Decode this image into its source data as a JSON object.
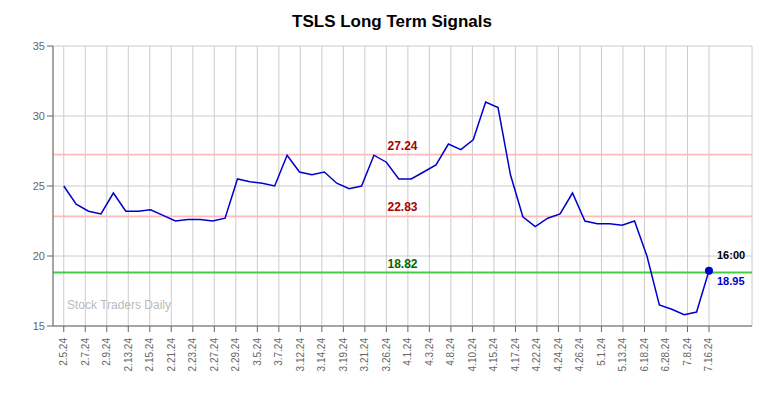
{
  "chart_data": {
    "type": "line",
    "title": "TSLS Long Term Signals",
    "x": [
      0,
      0.576923,
      1.153846,
      1.730769,
      2.307692,
      2.884615,
      3.461538,
      4.038462,
      4.615385,
      5.192308,
      5.769231,
      6.346154,
      6.923077,
      7.5,
      8.076923,
      8.653846,
      9.230769,
      9.807692,
      10.384615,
      10.961538,
      11.538462,
      12.115385,
      12.692308,
      13.269231,
      13.846154,
      14.423077,
      15,
      15.576923,
      16.153846,
      16.730769,
      17.307692,
      17.884615,
      18.461538,
      19.038462,
      19.615385,
      20.192308,
      20.769231,
      21.346154,
      21.923077,
      22.5,
      23.076923,
      23.653846,
      24.230769,
      24.807692,
      25.384615,
      25.961538,
      26.538462,
      27.115385,
      27.692308,
      28.269231,
      28.846154,
      29.423077,
      30
    ],
    "values": [
      25.0,
      23.7,
      23.2,
      23.0,
      24.5,
      23.2,
      23.2,
      23.3,
      22.9,
      22.5,
      22.6,
      22.6,
      22.5,
      22.7,
      25.5,
      25.3,
      25.2,
      25.0,
      27.2,
      26.0,
      25.8,
      26.0,
      25.2,
      24.8,
      25.0,
      27.2,
      26.7,
      25.5,
      25.5,
      26.0,
      26.5,
      28.0,
      27.6,
      28.3,
      31.0,
      30.6,
      25.8,
      22.8,
      22.1,
      22.7,
      23.0,
      24.5,
      22.5,
      22.3,
      22.3,
      22.2,
      22.5,
      20.0,
      16.5,
      16.2,
      15.8,
      16.0,
      18.95
    ],
    "color": "#0000cc",
    "xlim": [
      -0.5,
      32
    ],
    "xticks": [
      {
        "value": 0,
        "label": "2.5.24"
      },
      {
        "value": 1,
        "label": "2.7.24"
      },
      {
        "value": 2,
        "label": "2.9.24"
      },
      {
        "value": 3,
        "label": "2.13.24"
      },
      {
        "value": 4,
        "label": "2.15.24"
      },
      {
        "value": 5,
        "label": "2.21.24"
      },
      {
        "value": 6,
        "label": "2.23.24"
      },
      {
        "value": 7,
        "label": "2.27.24"
      },
      {
        "value": 8,
        "label": "2.29.24"
      },
      {
        "value": 9,
        "label": "3.5.24"
      },
      {
        "value": 10,
        "label": "3.7.24"
      },
      {
        "value": 11,
        "label": "3.12.24"
      },
      {
        "value": 12,
        "label": "3.14.24"
      },
      {
        "value": 13,
        "label": "3.19.24"
      },
      {
        "value": 14,
        "label": "3.21.24"
      },
      {
        "value": 15,
        "label": "3.26.24"
      },
      {
        "value": 16,
        "label": "4.1.24"
      },
      {
        "value": 17,
        "label": "4.3.24"
      },
      {
        "value": 18,
        "label": "4.8.24"
      },
      {
        "value": 19,
        "label": "4.10.24"
      },
      {
        "value": 20,
        "label": "4.15.24"
      },
      {
        "value": 21,
        "label": "4.17.24"
      },
      {
        "value": 22,
        "label": "4.22.24"
      },
      {
        "value": 23,
        "label": "4.24.24"
      },
      {
        "value": 24,
        "label": "4.26.24"
      },
      {
        "value": 25,
        "label": "5.1.24"
      },
      {
        "value": 26,
        "label": "5.13.24"
      },
      {
        "value": 27,
        "label": "6.18.24"
      },
      {
        "value": 28,
        "label": "6.28.24"
      },
      {
        "value": 29,
        "label": "7.8.24"
      },
      {
        "value": 30,
        "label": "7.16.24"
      }
    ],
    "ylim": [
      15,
      35
    ],
    "yticks": [
      15,
      20,
      25,
      30,
      35
    ],
    "grid": true,
    "reference_lines": [
      {
        "value": 27.24,
        "label": "27.24",
        "color": "#ffbbbb",
        "label_color": "#aa0000"
      },
      {
        "value": 22.83,
        "label": "22.83",
        "color": "#ffbbbb",
        "label_color": "#aa0000"
      },
      {
        "value": 18.82,
        "label": "18.82",
        "color": "#44cc44",
        "label_color": "#006600"
      }
    ],
    "last_point": {
      "x": 30,
      "y": 18.95,
      "labels": [
        {
          "text": "16:00",
          "color": "#000000"
        },
        {
          "text": "18.95",
          "color": "#0000cc"
        }
      ]
    },
    "watermark": "Stock Traders Daily"
  }
}
